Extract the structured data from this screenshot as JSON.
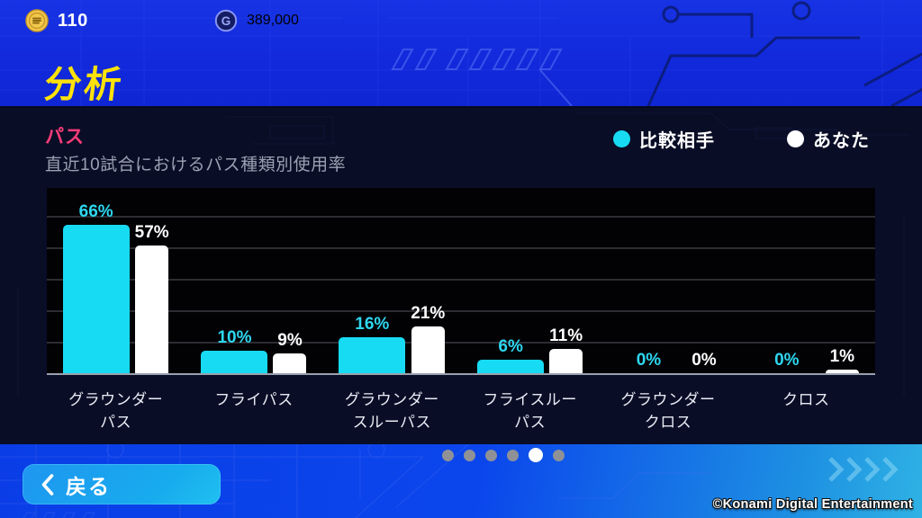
{
  "header": {
    "coin": {
      "icon": "coin-icon",
      "amount": "110"
    },
    "gp": {
      "icon": "gp-icon",
      "amount": "389,000"
    },
    "page_title": "分析"
  },
  "panel": {
    "section_title": "パス",
    "subtitle": "直近10試合におけるパス種類別使用率",
    "legend": [
      {
        "label": "比較相手",
        "color": "#17DBF2"
      },
      {
        "label": "あなた",
        "color": "#FFFFFF"
      }
    ]
  },
  "chart_data": {
    "type": "bar",
    "categories": [
      "グラウンダーパス",
      "フライパス",
      "グラウンダースルーパス",
      "フライスルーパス",
      "グラウンダークロス",
      "クロス"
    ],
    "series": [
      {
        "name": "比較相手",
        "color": "#17DBF2",
        "label_color": "#2ED7F0",
        "values": [
          66,
          10,
          16,
          6,
          0,
          0
        ]
      },
      {
        "name": "あなた",
        "color": "#FFFFFF",
        "label_color": "#FFFFFF",
        "values": [
          57,
          9,
          21,
          11,
          0,
          1
        ]
      }
    ],
    "value_suffix": "%",
    "title": "直近10試合におけるパス種類別使用率",
    "xlabel": "",
    "ylabel": "",
    "ylim": [
      0,
      83
    ],
    "grid": true,
    "legend_position": "top-right"
  },
  "pagination": {
    "total": 6,
    "active_index": 4
  },
  "footer": {
    "back_label": "戻る",
    "copyright": "©Konami Digital Entertainment"
  },
  "colors": {
    "accent_cyan": "#17DBF2",
    "accent_pink": "#F93C78",
    "title_yellow": "#FFE20A",
    "bar_white": "#FFFFFF"
  }
}
